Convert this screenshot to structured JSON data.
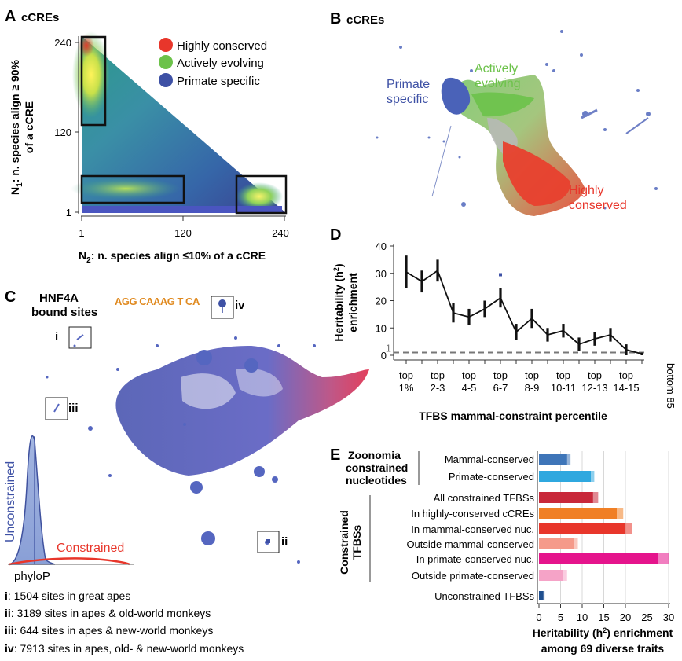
{
  "panels": {
    "A": {
      "label": "A",
      "title": "cCREs",
      "xlabel": "N2: n. species align ≤10% of a cCRE",
      "xlabel_main": "N",
      "xlabel_sub": "2",
      "xlabel_rest": ": n. species align ≤10% of a cCRE",
      "ylabel_main": "N",
      "ylabel_sub": "1",
      "ylabel_rest": ": n. species align ≥ 90%",
      "ylabel_line2": "of a cCRE",
      "xticks": [
        "1",
        "120",
        "240"
      ],
      "yticks": [
        "240",
        "120",
        "1"
      ],
      "legend": [
        {
          "label": "Highly conserved",
          "color": "#e8362b"
        },
        {
          "label": "Actively evolving",
          "color": "#6cc24a"
        },
        {
          "label": "Primate specific",
          "color": "#3e51a5"
        }
      ]
    },
    "B": {
      "label": "B",
      "title": "cCREs",
      "groups": {
        "primate_line1": "Primate",
        "primate_line2": "specific",
        "active_line1": "Actively",
        "active_line2": "evolving",
        "high_line1": "Highly",
        "high_line2": "conserved"
      }
    },
    "C": {
      "label": "C",
      "title_line1": "HNF4A",
      "title_line2": "bound sites",
      "motif": "AGG CAAAG T CA",
      "insets": [
        "i",
        "ii",
        "iii",
        "iv"
      ],
      "density_ylabel": "Unconstrained",
      "density_red_label": "Constrained",
      "density_xlabel": "phyloP",
      "captions": [
        {
          "key": "i",
          "text": ": 1504 sites in great apes"
        },
        {
          "key": "ii",
          "text": ": 3189 sites in apes & old-world monkeys"
        },
        {
          "key": "iii",
          "text": ": 644 sites in apes & new-world monkeys"
        },
        {
          "key": "iv",
          "text": ": 7913 sites in apes, old- & new-world monkeys"
        }
      ]
    },
    "D": {
      "label": "D"
    },
    "E": {
      "label": "E",
      "group1_line1": "Zoonomia",
      "group1_line2": "constrained",
      "group1_line3": "nucleotides",
      "group2_line1": "Constrained",
      "group2_line2": "TFBSs"
    }
  },
  "chart_data": [
    {
      "panel": "D",
      "type": "line",
      "ylabel": "Heritability (h²) enrichment",
      "ylabel_line1": "Heritability (h",
      "ylabel_sup": "2",
      "ylabel_line1_end": ")",
      "ylabel_line2": "enrichment",
      "xlabel": "TFBS mammal-constraint percentile",
      "ylim": [
        0,
        40
      ],
      "yticks": [
        "0",
        "10",
        "20",
        "30",
        "40"
      ],
      "baseline": 1,
      "baseline_label": "1",
      "tick_labels": [
        {
          "line1": "top",
          "line2": "1%"
        },
        {
          "line1": "top",
          "line2": "2-3"
        },
        {
          "line1": "top",
          "line2": "4-5"
        },
        {
          "line1": "top",
          "line2": "6-7"
        },
        {
          "line1": "top",
          "line2": "8-9"
        },
        {
          "line1": "top",
          "line2": "10-11"
        },
        {
          "line1": "top",
          "line2": "12-13"
        },
        {
          "line1": "top",
          "line2": "14-15"
        }
      ],
      "last_label": "bottom 85",
      "values": [
        30.5,
        27,
        31,
        15.5,
        14,
        17,
        21,
        8.5,
        13.5,
        7.5,
        9,
        4,
        6,
        7.5,
        2,
        0.5
      ],
      "errors": [
        6,
        4,
        4,
        3.5,
        3,
        3,
        3.5,
        3,
        3.5,
        2.5,
        2.5,
        2.5,
        2.5,
        2.5,
        2,
        0.5
      ],
      "outlier": {
        "index": 6,
        "value": 29.5
      }
    },
    {
      "panel": "E",
      "type": "bar",
      "xlabel_line1": "Heritability (h²) enrichment",
      "xlabel_pre": "Heritability (h",
      "xlabel_sup": "2",
      "xlabel_post": ") enrichment",
      "xlabel_line2": "among 69 diverse traits",
      "xlim": [
        0,
        30
      ],
      "xticks": [
        "0",
        "5",
        "10",
        "15",
        "20",
        "25",
        "30"
      ],
      "categories": [
        "Mammal-conserved",
        "Primate-conserved",
        "All constrained TFBSs",
        "In highly-conserved cCREs",
        "In mammal-conserved nuc.",
        "Outside mammal-conserved",
        "In primate-conserved nuc.",
        "Outside primate-conserved",
        "Unconstrained TFBSs"
      ],
      "values": [
        6.5,
        12,
        12.5,
        18,
        20,
        8,
        27.5,
        5.5,
        1
      ],
      "upper": [
        7.3,
        12.8,
        13.7,
        19.5,
        21.5,
        9,
        30,
        6.5,
        1.3
      ],
      "colors": [
        "#3e75b8",
        "#2fa8df",
        "#c8283a",
        "#f07f25",
        "#e8362b",
        "#f59a8a",
        "#e5148c",
        "#f5a3c7",
        "#1f4f8f"
      ]
    }
  ]
}
